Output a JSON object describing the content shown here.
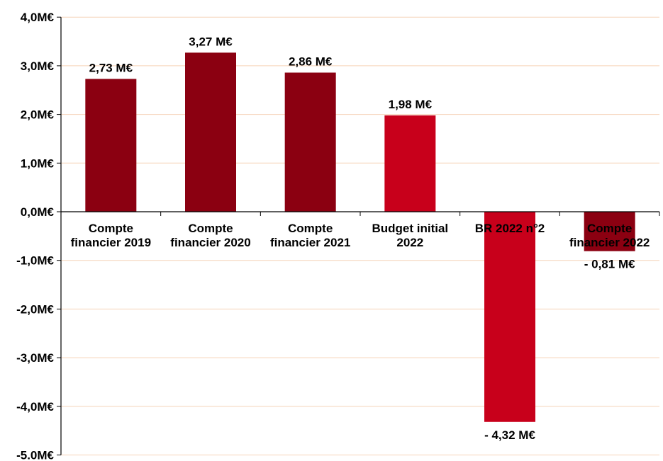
{
  "chart_data": {
    "type": "bar",
    "categories": [
      [
        "Compte",
        "financier 2019"
      ],
      [
        "Compte",
        "financier 2020"
      ],
      [
        "Compte",
        "financier 2021"
      ],
      [
        "Budget initial",
        "2022"
      ],
      [
        "BR 2022 n°2"
      ],
      [
        "Compte",
        "financier 2022"
      ]
    ],
    "values": [
      2.73,
      3.27,
      2.86,
      1.98,
      -4.32,
      -0.81
    ],
    "data_labels": [
      "2,73 M€",
      "3,27 M€",
      "2,86 M€",
      "1,98 M€",
      "- 4,32 M€",
      "- 0,81 M€"
    ],
    "bar_colors": [
      "#8b0011",
      "#8b0011",
      "#8b0011",
      "#c8001b",
      "#c8001b",
      "#8b0011"
    ],
    "ylim": [
      -5,
      4
    ],
    "yticks": [
      {
        "value": 4,
        "label": "4,0M€"
      },
      {
        "value": 3,
        "label": "3,0M€"
      },
      {
        "value": 2,
        "label": "2,0M€"
      },
      {
        "value": 1,
        "label": "1,0M€"
      },
      {
        "value": 0,
        "label": "0,0M€"
      },
      {
        "value": -1,
        "label": "-1,0M€"
      },
      {
        "value": -2,
        "label": "-2,0M€"
      },
      {
        "value": -3,
        "label": "-3,0M€"
      },
      {
        "value": -4,
        "label": "-4,0M€"
      },
      {
        "value": -5,
        "label": "-5.0M€"
      }
    ],
    "grid": true,
    "gridline_color": "#f6d3b8",
    "xlabel": "",
    "ylabel": "",
    "title": ""
  }
}
